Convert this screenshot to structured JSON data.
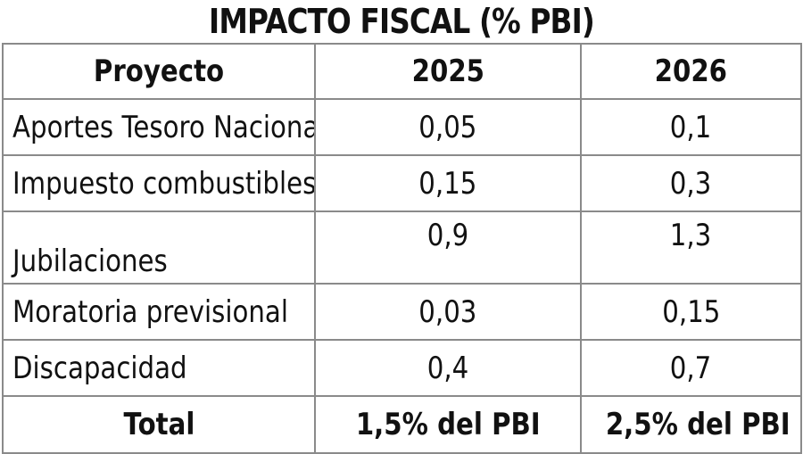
{
  "title": "IMPACTO FISCAL (% PBI)",
  "table": {
    "headers": [
      "Proyecto",
      "2025",
      "2026"
    ],
    "rows": [
      {
        "proyecto": "Aportes Tesoro Nacional",
        "y2025": "0,05",
        "y2026": "0,1"
      },
      {
        "proyecto": "Impuesto combustibles",
        "y2025": "0,15",
        "y2026": "0,3"
      },
      {
        "proyecto": "Jubilaciones",
        "y2025": "0,9",
        "y2026": "1,3"
      },
      {
        "proyecto": "Moratoria previsional",
        "y2025": "0,03",
        "y2026": "0,15"
      },
      {
        "proyecto": "Discapacidad",
        "y2025": "0,4",
        "y2026": "0,7"
      }
    ],
    "total": {
      "label": "Total",
      "y2025": "1,5% del PBI",
      "y2026": "2,5% del PBI"
    }
  },
  "colors": {
    "text": "#111111",
    "border": "#8a8a8a",
    "background": "#ffffff"
  }
}
